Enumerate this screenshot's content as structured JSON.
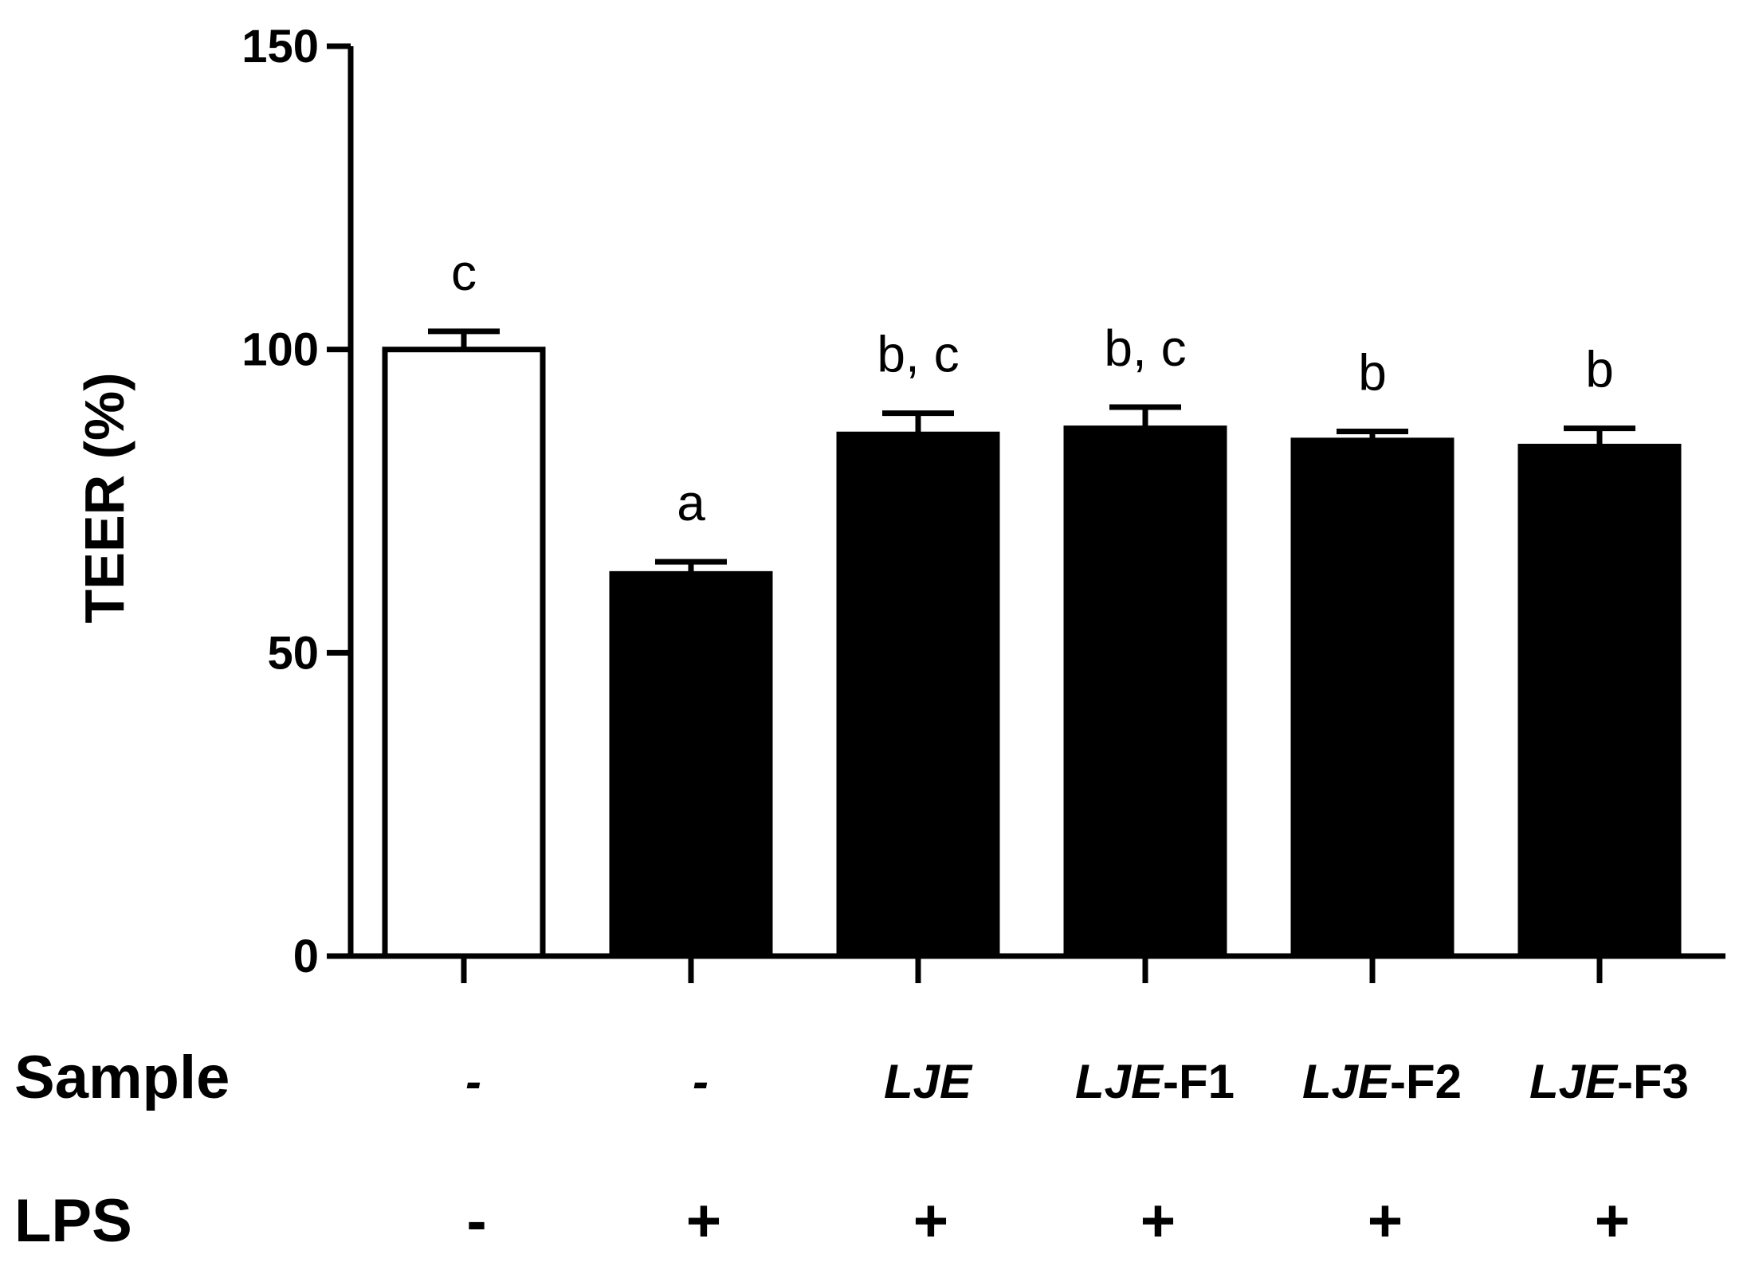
{
  "chart_data": {
    "type": "bar",
    "ylabel": "TEER (%)",
    "ylim": [
      0,
      150
    ],
    "yticks": [
      0,
      50,
      100,
      150
    ],
    "grid": false,
    "bars": [
      {
        "value": 100,
        "error": 3,
        "sig": "c",
        "sample": {
          "italic": "-",
          "normal": ""
        },
        "lps": "-",
        "fill": "#ffffff"
      },
      {
        "value": 63,
        "error": 2,
        "sig": "a",
        "sample": {
          "italic": "-",
          "normal": ""
        },
        "lps": "+",
        "fill": "#000000"
      },
      {
        "value": 86,
        "error": 3.5,
        "sig": "b, c",
        "sample": {
          "italic": "LJE",
          "normal": ""
        },
        "lps": "+",
        "fill": "#000000"
      },
      {
        "value": 87,
        "error": 3.5,
        "sig": "b, c",
        "sample": {
          "italic": "LJE",
          "normal": "-F1"
        },
        "lps": "+",
        "fill": "#000000"
      },
      {
        "value": 85,
        "error": 1.5,
        "sig": "b",
        "sample": {
          "italic": "LJE",
          "normal": "-F2"
        },
        "lps": "+",
        "fill": "#000000"
      },
      {
        "value": 84,
        "error": 3,
        "sig": "b",
        "sample": {
          "italic": "LJE",
          "normal": "-F3"
        },
        "lps": "+",
        "fill": "#000000"
      }
    ],
    "row_labels": {
      "sample": "Sample",
      "lps": "LPS"
    }
  }
}
